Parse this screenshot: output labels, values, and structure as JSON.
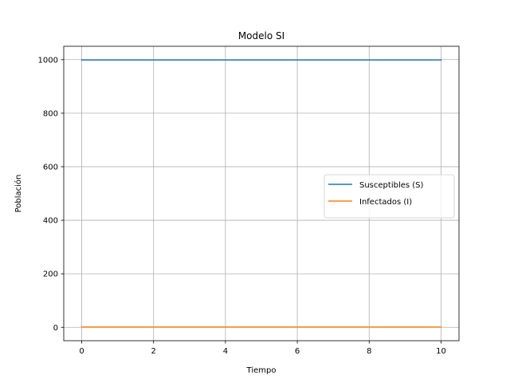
{
  "chart_data": {
    "type": "line",
    "title": "Modelo SI",
    "xlabel": "Tiempo",
    "ylabel": "Población",
    "xlim": [
      -0.5,
      10.5
    ],
    "ylim": [
      -50,
      1050
    ],
    "xticks": [
      0,
      2,
      4,
      6,
      8,
      10
    ],
    "yticks": [
      0,
      200,
      400,
      600,
      800,
      1000
    ],
    "grid": true,
    "legend_position": "center-right",
    "x": [
      0,
      1,
      2,
      3,
      4,
      5,
      6,
      7,
      8,
      9,
      10
    ],
    "series": [
      {
        "name": "Susceptibles (S)",
        "color": "#1f77b4",
        "values": [
          999,
          999,
          999,
          999,
          999,
          999,
          999,
          999,
          999,
          999,
          999
        ]
      },
      {
        "name": "Infectados (I)",
        "color": "#ff7f0e",
        "values": [
          1,
          1,
          1,
          1,
          1,
          1,
          1,
          1,
          1,
          1,
          1
        ]
      }
    ]
  }
}
